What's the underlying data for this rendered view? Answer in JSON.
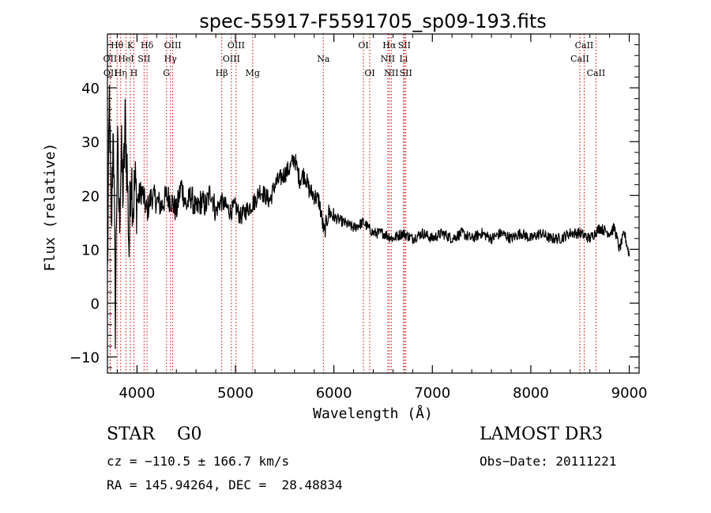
{
  "chart_data": {
    "type": "line",
    "title": "spec-55917-F5591705_sp09-193.fits",
    "xlabel": "Wavelength (Å)",
    "ylabel": "Flux (relative)",
    "xlim": [
      3700,
      9100
    ],
    "ylim": [
      -13,
      50
    ],
    "x_ticks": [
      4000,
      5000,
      6000,
      7000,
      8000,
      9000
    ],
    "y_ticks": [
      -10,
      0,
      10,
      20,
      30,
      40
    ],
    "series": [
      {
        "name": "flux",
        "x": [
          3700,
          3720,
          3740,
          3760,
          3780,
          3800,
          3820,
          3840,
          3860,
          3880,
          3900,
          3920,
          3940,
          3960,
          3980,
          4000,
          4050,
          4100,
          4150,
          4200,
          4250,
          4300,
          4350,
          4400,
          4450,
          4500,
          4550,
          4600,
          4650,
          4700,
          4750,
          4800,
          4850,
          4900,
          4950,
          5000,
          5050,
          5100,
          5150,
          5200,
          5250,
          5300,
          5350,
          5400,
          5450,
          5500,
          5550,
          5600,
          5650,
          5700,
          5750,
          5800,
          5850,
          5900,
          5950,
          6000,
          6100,
          6200,
          6300,
          6400,
          6500,
          6600,
          6700,
          6800,
          6900,
          7000,
          7100,
          7200,
          7300,
          7400,
          7500,
          7600,
          7700,
          7800,
          7900,
          8000,
          8100,
          8200,
          8300,
          8400,
          8500,
          8600,
          8700,
          8800,
          8850,
          8900,
          8950,
          9000
        ],
        "values": [
          5,
          38,
          12,
          35,
          -3,
          30,
          15,
          28,
          20,
          33,
          25,
          10,
          26,
          18,
          22,
          19,
          21,
          17,
          20,
          19,
          18,
          20,
          19,
          17,
          22,
          18,
          20,
          17,
          19,
          18,
          21,
          17,
          19,
          18,
          17,
          18,
          16,
          17,
          18,
          19,
          21,
          20,
          19,
          22,
          23,
          24,
          25,
          27,
          23,
          24,
          21,
          20,
          19,
          13,
          17,
          16,
          15,
          14,
          15,
          13,
          13,
          12,
          13,
          12,
          13,
          12,
          13,
          12,
          13,
          12,
          13,
          12,
          13,
          12,
          13,
          12,
          13,
          12,
          12,
          13,
          13,
          12,
          14,
          13,
          14,
          10,
          13,
          9
        ]
      }
    ],
    "line_markers": [
      {
        "label": "Hθ",
        "x": 3798,
        "row": 1
      },
      {
        "label": "OII",
        "x": 3727,
        "row": 2
      },
      {
        "label": "OII",
        "x": 3730,
        "row": 3
      },
      {
        "label": "Hη",
        "x": 3835,
        "row": 3
      },
      {
        "label": "HeI",
        "x": 3889,
        "row": 2
      },
      {
        "label": "K",
        "x": 3934,
        "row": 1
      },
      {
        "label": "H",
        "x": 3969,
        "row": 3
      },
      {
        "label": "SII",
        "x": 4072,
        "row": 2
      },
      {
        "label": "Hδ",
        "x": 4102,
        "row": 1
      },
      {
        "label": "OIII",
        "x": 4363,
        "row": 1
      },
      {
        "label": "Hγ",
        "x": 4340,
        "row": 2
      },
      {
        "label": "G",
        "x": 4300,
        "row": 3
      },
      {
        "label": "Hβ",
        "x": 4861,
        "row": 3
      },
      {
        "label": "OIII",
        "x": 5007,
        "row": 1
      },
      {
        "label": "OIII",
        "x": 4959,
        "row": 2
      },
      {
        "label": "Mg",
        "x": 5175,
        "row": 3
      },
      {
        "label": "Na",
        "x": 5893,
        "row": 2
      },
      {
        "label": "OI",
        "x": 6300,
        "row": 1
      },
      {
        "label": "OI",
        "x": 6364,
        "row": 3
      },
      {
        "label": "Hα",
        "x": 6563,
        "row": 1
      },
      {
        "label": "NII",
        "x": 6548,
        "row": 2
      },
      {
        "label": "NII",
        "x": 6583,
        "row": 3
      },
      {
        "label": "SII",
        "x": 6716,
        "row": 1
      },
      {
        "label": "Li",
        "x": 6708,
        "row": 2
      },
      {
        "label": "SII",
        "x": 6731,
        "row": 3
      },
      {
        "label": "CaII",
        "x": 8542,
        "row": 1
      },
      {
        "label": "CaII",
        "x": 8498,
        "row": 2
      },
      {
        "label": "CaII",
        "x": 8662,
        "row": 3
      }
    ]
  },
  "info": {
    "object_class": "STAR    G0",
    "survey": "LAMOST DR3",
    "velocity": "cz = −110.5 ± 166.7 km/s",
    "obs_date": "Obs−Date: 20111221",
    "coordinates": "RA = 145.94264, DEC =  28.48834"
  },
  "colors": {
    "spectrum": "#000000",
    "marker_lines": "#cc0000",
    "axes": "#000000",
    "background": "#ffffff"
  }
}
